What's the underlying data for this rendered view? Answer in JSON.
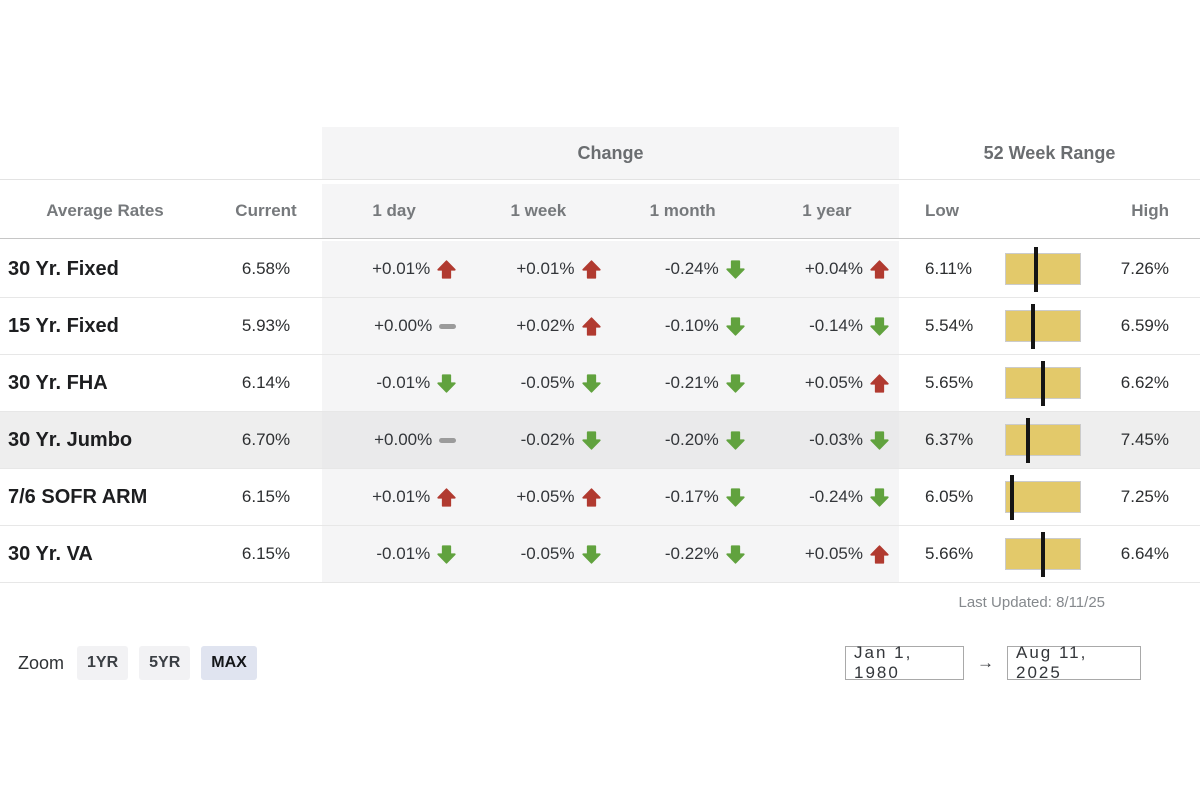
{
  "colors": {
    "up": "#b13a30",
    "down": "#61a23e",
    "flat": "#9b9b9b",
    "bar_fill": "#e3c96a",
    "bar_marker": "#151515",
    "band_bg": "#f5f5f6",
    "highlight_row_bg": "#eeeeee",
    "zoom_active_bg": "#e0e4f0"
  },
  "table": {
    "group_headers": {
      "change": "Change",
      "range": "52 Week Range"
    },
    "column_headers": {
      "label": "Average Rates",
      "current": "Current",
      "day": "1 day",
      "week": "1 week",
      "month": "1 month",
      "year": "1 year",
      "low": "Low",
      "high": "High"
    },
    "change_periods": [
      "1day",
      "1week",
      "1month",
      "1year"
    ],
    "rows": [
      {
        "label": "30 Yr. Fixed",
        "current": "6.58%",
        "current_num": 6.58,
        "changes": [
          {
            "value": "+0.01%",
            "dir": "up"
          },
          {
            "value": "+0.01%",
            "dir": "up"
          },
          {
            "value": "-0.24%",
            "dir": "down"
          },
          {
            "value": "+0.04%",
            "dir": "up"
          }
        ],
        "low": "6.11%",
        "low_num": 6.11,
        "high": "7.26%",
        "high_num": 7.26,
        "highlighted": false
      },
      {
        "label": "15 Yr. Fixed",
        "current": "5.93%",
        "current_num": 5.93,
        "changes": [
          {
            "value": "+0.00%",
            "dir": "flat"
          },
          {
            "value": "+0.02%",
            "dir": "up"
          },
          {
            "value": "-0.10%",
            "dir": "down"
          },
          {
            "value": "-0.14%",
            "dir": "down"
          }
        ],
        "low": "5.54%",
        "low_num": 5.54,
        "high": "6.59%",
        "high_num": 6.59,
        "highlighted": false
      },
      {
        "label": "30 Yr. FHA",
        "current": "6.14%",
        "current_num": 6.14,
        "changes": [
          {
            "value": "-0.01%",
            "dir": "down"
          },
          {
            "value": "-0.05%",
            "dir": "down"
          },
          {
            "value": "-0.21%",
            "dir": "down"
          },
          {
            "value": "+0.05%",
            "dir": "up"
          }
        ],
        "low": "5.65%",
        "low_num": 5.65,
        "high": "6.62%",
        "high_num": 6.62,
        "highlighted": false
      },
      {
        "label": "30 Yr. Jumbo",
        "current": "6.70%",
        "current_num": 6.7,
        "changes": [
          {
            "value": "+0.00%",
            "dir": "flat"
          },
          {
            "value": "-0.02%",
            "dir": "down"
          },
          {
            "value": "-0.20%",
            "dir": "down"
          },
          {
            "value": "-0.03%",
            "dir": "down"
          }
        ],
        "low": "6.37%",
        "low_num": 6.37,
        "high": "7.45%",
        "high_num": 7.45,
        "highlighted": true
      },
      {
        "label": "7/6 SOFR ARM",
        "current": "6.15%",
        "current_num": 6.15,
        "changes": [
          {
            "value": "+0.01%",
            "dir": "up"
          },
          {
            "value": "+0.05%",
            "dir": "up"
          },
          {
            "value": "-0.17%",
            "dir": "down"
          },
          {
            "value": "-0.24%",
            "dir": "down"
          }
        ],
        "low": "6.05%",
        "low_num": 6.05,
        "high": "7.25%",
        "high_num": 7.25,
        "highlighted": false
      },
      {
        "label": "30 Yr. VA",
        "current": "6.15%",
        "current_num": 6.15,
        "changes": [
          {
            "value": "-0.01%",
            "dir": "down"
          },
          {
            "value": "-0.05%",
            "dir": "down"
          },
          {
            "value": "-0.22%",
            "dir": "down"
          },
          {
            "value": "+0.05%",
            "dir": "up"
          }
        ],
        "low": "5.66%",
        "low_num": 5.66,
        "high": "6.64%",
        "high_num": 6.64,
        "highlighted": false
      }
    ],
    "last_updated": "Last Updated: 8/11/25"
  },
  "controls": {
    "zoom_label": "Zoom",
    "zoom_options": [
      {
        "label": "1YR",
        "active": false
      },
      {
        "label": "5YR",
        "active": false
      },
      {
        "label": "MAX",
        "active": true
      }
    ],
    "date_from": "Jan 1, 1980",
    "date_to": "Aug 11, 2025",
    "range_arrow": "→"
  }
}
